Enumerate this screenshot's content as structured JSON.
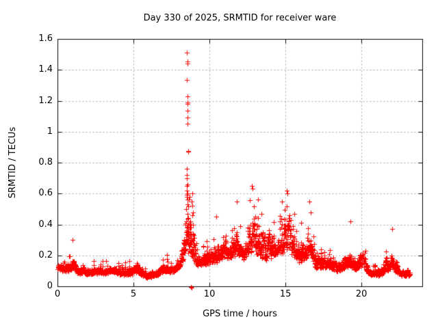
{
  "chart_data": {
    "type": "scatter",
    "title": "Day 330 of 2025, SRMTID for receiver ware",
    "xlabel": "GPS time / hours",
    "ylabel": "SRMTID / TECUs",
    "xlim": [
      0,
      24
    ],
    "ylim": [
      0,
      1.6
    ],
    "xticks": [
      0,
      5,
      10,
      15,
      20
    ],
    "xtick_labels": [
      "0",
      "5",
      "10",
      "15",
      "20"
    ],
    "yticks": [
      0,
      0.2,
      0.4,
      0.6,
      0.8,
      1.0,
      1.2,
      1.4,
      1.6
    ],
    "ytick_labels": [
      "0",
      "0.2",
      "0.4",
      "0.6",
      "0.8",
      "1",
      "1.2",
      "1.4",
      "1.6"
    ],
    "grid": true,
    "legend": "none",
    "marker": "plus",
    "colors": {
      "points": "#ff0000",
      "grid": "#a0a0a0",
      "axis": "#000000",
      "text": "#000000",
      "background": "#ffffff"
    },
    "time_span_hours": [
      0,
      23.2
    ],
    "sampling_interval_hours": 0.008333,
    "envelope": [
      [
        0.0,
        0.08,
        0.2
      ],
      [
        0.7,
        0.06,
        0.22
      ],
      [
        1.0,
        0.06,
        0.3
      ],
      [
        1.3,
        0.05,
        0.2
      ],
      [
        2.0,
        0.05,
        0.17
      ],
      [
        3.0,
        0.05,
        0.19
      ],
      [
        3.7,
        0.05,
        0.22
      ],
      [
        4.3,
        0.04,
        0.17
      ],
      [
        5.0,
        0.04,
        0.22
      ],
      [
        5.3,
        0.04,
        0.25
      ],
      [
        5.8,
        0.03,
        0.14
      ],
      [
        6.5,
        0.04,
        0.16
      ],
      [
        7.1,
        0.05,
        0.24
      ],
      [
        7.6,
        0.06,
        0.2
      ],
      [
        8.0,
        0.07,
        0.3
      ],
      [
        8.3,
        0.08,
        0.45
      ],
      [
        8.45,
        0.06,
        0.76
      ],
      [
        8.65,
        0.05,
        0.76
      ],
      [
        8.9,
        0.05,
        0.6
      ],
      [
        9.2,
        0.08,
        0.3
      ],
      [
        9.8,
        0.08,
        0.35
      ],
      [
        10.4,
        0.08,
        0.42
      ],
      [
        11.0,
        0.1,
        0.45
      ],
      [
        11.6,
        0.1,
        0.5
      ],
      [
        11.8,
        0.1,
        0.55
      ],
      [
        12.2,
        0.1,
        0.42
      ],
      [
        12.7,
        0.1,
        0.63
      ],
      [
        12.9,
        0.1,
        0.65
      ],
      [
        13.2,
        0.1,
        0.56
      ],
      [
        13.7,
        0.08,
        0.45
      ],
      [
        14.2,
        0.1,
        0.48
      ],
      [
        14.7,
        0.12,
        0.55
      ],
      [
        15.1,
        0.1,
        0.62
      ],
      [
        15.4,
        0.1,
        0.55
      ],
      [
        15.8,
        0.08,
        0.4
      ],
      [
        16.2,
        0.08,
        0.5
      ],
      [
        16.6,
        0.1,
        0.55
      ],
      [
        17.0,
        0.06,
        0.3
      ],
      [
        17.8,
        0.06,
        0.32
      ],
      [
        18.3,
        0.05,
        0.25
      ],
      [
        18.8,
        0.05,
        0.3
      ],
      [
        19.2,
        0.05,
        0.42
      ],
      [
        19.6,
        0.05,
        0.28
      ],
      [
        20.1,
        0.08,
        0.35
      ],
      [
        20.5,
        0.04,
        0.18
      ],
      [
        21.2,
        0.04,
        0.16
      ],
      [
        21.7,
        0.05,
        0.25
      ],
      [
        22.0,
        0.06,
        0.37
      ],
      [
        22.3,
        0.05,
        0.2
      ],
      [
        22.7,
        0.04,
        0.15
      ],
      [
        23.2,
        0.05,
        0.14
      ]
    ],
    "explicit_points": [
      [
        8.52,
        1.51
      ],
      [
        8.54,
        1.452
      ],
      [
        8.56,
        1.44
      ],
      [
        8.53,
        1.335
      ],
      [
        8.55,
        1.23
      ],
      [
        8.54,
        1.19
      ],
      [
        8.57,
        1.18
      ],
      [
        8.55,
        1.135
      ],
      [
        8.56,
        1.09
      ],
      [
        8.54,
        1.05
      ],
      [
        8.58,
        0.875
      ],
      [
        8.61,
        0.87
      ],
      [
        8.46,
        0.35
      ],
      [
        8.47,
        0.42
      ],
      [
        8.48,
        0.5
      ],
      [
        8.49,
        0.58
      ],
      [
        8.5,
        0.65
      ],
      [
        8.51,
        0.72
      ],
      [
        8.52,
        0.76
      ],
      [
        8.53,
        0.7
      ],
      [
        8.53,
        0.62
      ],
      [
        8.54,
        0.56
      ],
      [
        8.55,
        0.66
      ],
      [
        8.56,
        0.6
      ],
      [
        8.57,
        0.53
      ],
      [
        8.57,
        0.47
      ],
      [
        8.58,
        0.44
      ],
      [
        8.59,
        0.4
      ],
      [
        8.6,
        0.37
      ],
      [
        8.61,
        0.33
      ],
      [
        8.62,
        0.3
      ],
      [
        8.63,
        0.27
      ],
      [
        8.64,
        0.24
      ],
      [
        8.66,
        0.35
      ],
      [
        8.68,
        0.3
      ],
      [
        8.7,
        0.26
      ],
      [
        8.72,
        0.22
      ],
      [
        8.75,
        0.42
      ],
      [
        8.77,
        0.38
      ],
      [
        8.8,
        0.33
      ],
      [
        8.83,
        0.55
      ],
      [
        8.85,
        0.6
      ],
      [
        8.86,
        0.52
      ],
      [
        8.88,
        0.46
      ],
      [
        8.9,
        0.4
      ],
      [
        8.92,
        0.34
      ],
      [
        8.95,
        0.28
      ],
      [
        8.78,
        -0.004
      ],
      [
        8.81,
        -0.008
      ],
      [
        1.0,
        0.3
      ],
      [
        10.45,
        0.45
      ],
      [
        11.78,
        0.55
      ],
      [
        12.8,
        0.65
      ],
      [
        12.82,
        0.63
      ],
      [
        13.2,
        0.56
      ],
      [
        14.75,
        0.55
      ],
      [
        15.1,
        0.62
      ],
      [
        15.15,
        0.6
      ],
      [
        16.55,
        0.55
      ],
      [
        19.25,
        0.42
      ],
      [
        22.0,
        0.37
      ]
    ],
    "notable_peaks": [
      {
        "hour": 8.52,
        "value": 1.51
      },
      {
        "hour": 12.8,
        "value": 0.65
      },
      {
        "hour": 15.1,
        "value": 0.62
      },
      {
        "hour": 11.78,
        "value": 0.55
      },
      {
        "hour": 16.55,
        "value": 0.55
      },
      {
        "hour": 1.0,
        "value": 0.3
      },
      {
        "hour": 22.0,
        "value": 0.37
      }
    ]
  }
}
